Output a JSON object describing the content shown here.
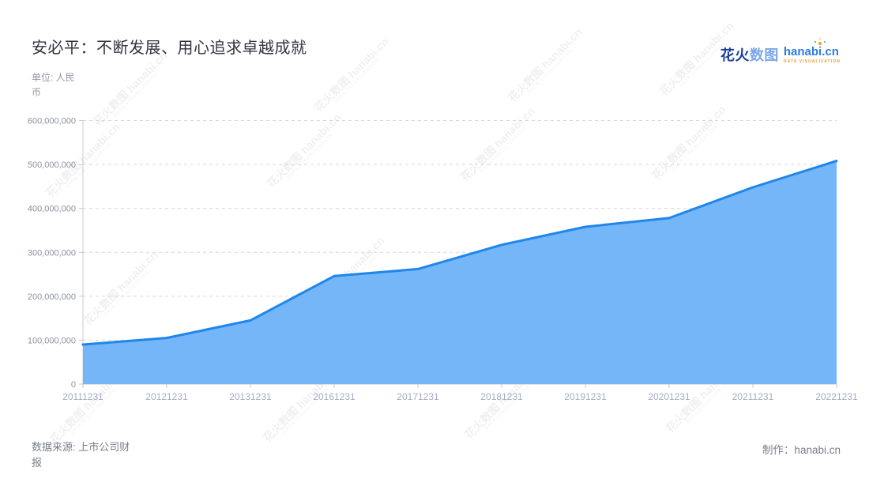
{
  "header": {
    "title": "安必平：不断发展、用心追求卓越成就",
    "unit_lines": [
      "单位: 人民",
      "币"
    ]
  },
  "logo": {
    "cn_bold": "花火",
    "cn_light": "数图",
    "latin": "hanabi.cn",
    "tagline": "DATA VISUALIZATION"
  },
  "watermark": {
    "text": "花火数图 hanabi.cn",
    "subtext": "DATA VISUALIZATION"
  },
  "footer": {
    "source_lines": [
      "数据来源: 上市公司财",
      "报"
    ],
    "credit": "制作：hanabi.cn"
  },
  "colors": {
    "line": "#1f87ea",
    "area": "#74b6f8",
    "grid": "#d8d8d8",
    "axis": "#c9c9c9",
    "y_label": "#8b919e",
    "x_label": "#a4adc0"
  },
  "chart_data": {
    "type": "area",
    "title": "安必平：不断发展、用心追求卓越成就",
    "unit": "单位: 人民币",
    "categories": [
      "20111231",
      "20121231",
      "20131231",
      "20161231",
      "20171231",
      "20181231",
      "20191231",
      "20201231",
      "20211231",
      "20221231"
    ],
    "values": [
      90000000,
      105000000,
      145000000,
      246000000,
      262000000,
      317000000,
      358000000,
      378000000,
      448000000,
      508000000
    ],
    "xlabel": "",
    "ylabel": "人民币",
    "ylim": [
      0,
      600000000
    ],
    "y_tick_interval": 100000000,
    "y_tick_labels": [
      "0",
      "100,000,000",
      "200,000,000",
      "300,000,000",
      "400,000,000",
      "500,000,000",
      "600,000,000"
    ],
    "grid": "dashed-horizontal",
    "legend": "none",
    "source": "数据来源: 上市公司财报",
    "credit": "制作：hanabi.cn"
  }
}
